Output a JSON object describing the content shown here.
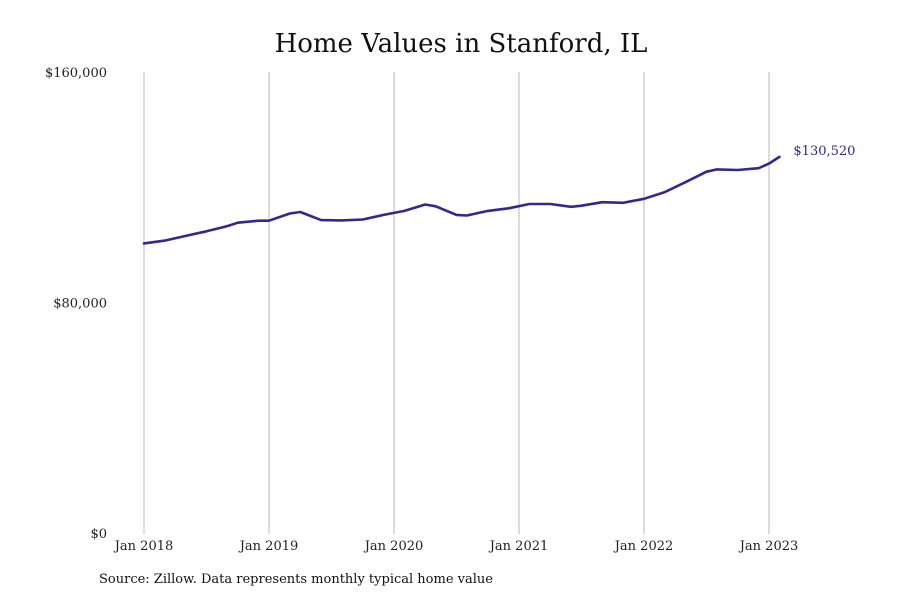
{
  "chart_data": {
    "type": "line",
    "title": "Home Values in Stanford, IL",
    "xlabel": "",
    "ylabel": "",
    "ylim": [
      0,
      160000
    ],
    "y_ticks": [
      {
        "value": 0,
        "label": "$0"
      },
      {
        "value": 80000,
        "label": "$80,000"
      },
      {
        "value": 160000,
        "label": "$160,000"
      }
    ],
    "x_ticks": [
      {
        "value": "2018-01",
        "label": "Jan 2018"
      },
      {
        "value": "2019-01",
        "label": "Jan 2019"
      },
      {
        "value": "2020-01",
        "label": "Jan 2020"
      },
      {
        "value": "2021-01",
        "label": "Jan 2021"
      },
      {
        "value": "2022-01",
        "label": "Jan 2022"
      },
      {
        "value": "2023-01",
        "label": "Jan 2023"
      }
    ],
    "grid": {
      "vertical": true,
      "horizontal": false
    },
    "line_color": "#2f2a8c",
    "end_label": "$130,520",
    "series": [
      {
        "x": [
          "2018-01",
          "2018-03",
          "2018-05",
          "2018-07",
          "2018-09",
          "2018-10",
          "2018-12",
          "2019-01",
          "2019-03",
          "2019-04",
          "2019-06",
          "2019-08",
          "2019-10",
          "2019-12",
          "2020-02",
          "2020-04",
          "2020-05",
          "2020-07",
          "2020-08",
          "2020-10",
          "2020-12",
          "2021-02",
          "2021-04",
          "2021-06",
          "2021-07",
          "2021-09",
          "2021-11",
          "2022-01",
          "2022-03",
          "2022-05",
          "2022-07",
          "2022-08",
          "2022-10",
          "2022-12",
          "2023-01",
          "2023-02"
        ],
        "values": [
          100500,
          101500,
          103100,
          104700,
          106500,
          107700,
          108400,
          108400,
          110900,
          111400,
          108600,
          108500,
          108800,
          110400,
          111800,
          114000,
          113400,
          110400,
          110200,
          111800,
          112700,
          114200,
          114200,
          113200,
          113600,
          114800,
          114600,
          116000,
          118300,
          121800,
          125400,
          126200,
          126000,
          126600,
          128200,
          130520
        ]
      }
    ]
  },
  "source_note": "Source: Zillow. Data represents monthly typical home value"
}
